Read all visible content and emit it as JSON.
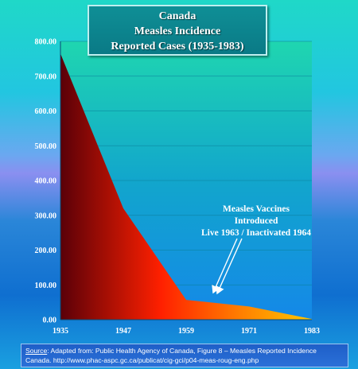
{
  "title_lines": [
    "Canada",
    "Measles Incidence",
    "Reported Cases (1935-1983)"
  ],
  "annotation_lines": [
    "Measles Vaccines",
    "Introduced",
    "Live 1963 / Inactivated 1964"
  ],
  "source": {
    "label": "Source",
    "text": ": Adapted from: Public Health Agency of Canada, Figure 8 – Measles Reported Incidence Canada. http://www.phac-aspc.gc.ca/publicat/cig-gci/p04-meas-roug-eng.php"
  },
  "chart_data": {
    "type": "area",
    "x": [
      1935,
      1947,
      1959,
      1971,
      1983
    ],
    "y": [
      765,
      320,
      57,
      38,
      2
    ],
    "xticks": [
      "1935",
      "1947",
      "1959",
      "1971",
      "1983"
    ],
    "yticks": [
      "0.00",
      "100.00",
      "200.00",
      "300.00",
      "400.00",
      "500.00",
      "600.00",
      "700.00",
      "800.00"
    ],
    "ylim": [
      0,
      800
    ],
    "xlim": [
      1935,
      1983
    ],
    "grid": true,
    "colors": {
      "plot_bg_top": "#1fd6b0",
      "plot_bg_bottom": "#1488e8",
      "fill_start": "#5a0008",
      "fill_mid": "#ff2000",
      "fill_end": "#ffc800"
    }
  }
}
